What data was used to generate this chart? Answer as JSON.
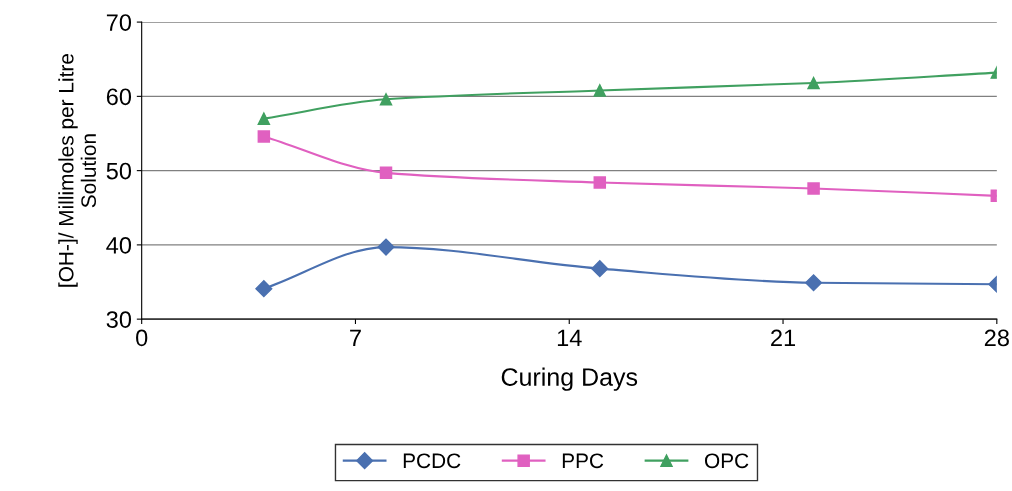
{
  "chart_data": {
    "type": "line",
    "xlabel": "Curing Days",
    "ylabel": "[OH-]/ Millimoles per Litre\nSolution",
    "x": [
      4,
      8,
      15,
      22,
      28
    ],
    "series": [
      {
        "name": "PCDC",
        "color": "#4a70b0",
        "marker": "diamond",
        "values": [
          34.1,
          39.7,
          36.8,
          34.9,
          34.7
        ]
      },
      {
        "name": "PPC",
        "color": "#e060c0",
        "marker": "square",
        "values": [
          54.6,
          49.7,
          48.4,
          47.6,
          46.6
        ]
      },
      {
        "name": "OPC",
        "color": "#40a060",
        "marker": "triangle",
        "values": [
          57.0,
          59.6,
          60.8,
          61.8,
          63.2
        ]
      }
    ],
    "xlim": [
      0,
      28
    ],
    "xticks": [
      0,
      7,
      14,
      21,
      28
    ],
    "ylim": [
      30,
      70
    ],
    "yticks": [
      30,
      40,
      50,
      60,
      70
    ],
    "grid": "y",
    "legend": "bottom",
    "line_style": "solid"
  }
}
